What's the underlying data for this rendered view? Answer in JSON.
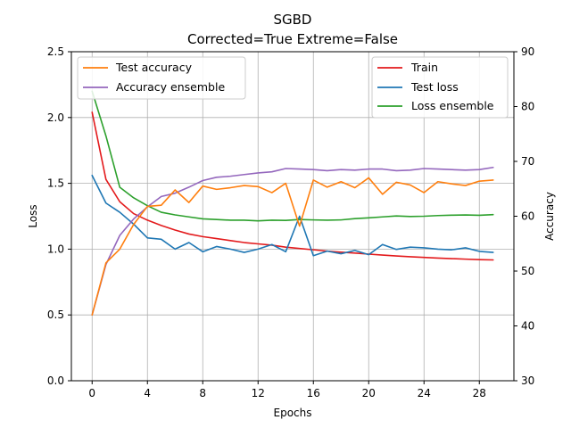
{
  "chart_data": {
    "type": "line",
    "title": "SGBD",
    "subtitle": "Corrected=True Extreme=False",
    "xlabel": "Epochs",
    "ylabel_left": "Loss",
    "ylabel_right": "Accuracy",
    "grid": true,
    "x": [
      0,
      1,
      2,
      3,
      4,
      5,
      6,
      7,
      8,
      9,
      10,
      11,
      12,
      13,
      14,
      15,
      16,
      17,
      18,
      19,
      20,
      21,
      22,
      23,
      24,
      25,
      26,
      27,
      28,
      29
    ],
    "xlim": [
      -1.5,
      30.5
    ],
    "xticks": [
      0,
      4,
      8,
      12,
      16,
      20,
      24,
      28
    ],
    "ylim_left": [
      0,
      2.5
    ],
    "yticks_left": [
      "0.0",
      "0.5",
      "1.0",
      "1.5",
      "2.0",
      "2.5"
    ],
    "ylim_right": [
      30,
      90
    ],
    "yticks_right": [
      "30",
      "40",
      "50",
      "60",
      "70",
      "80",
      "90"
    ],
    "legends": [
      {
        "placement": "upper-left",
        "entries": [
          "Test accuracy",
          "Accuracy ensemble"
        ]
      },
      {
        "placement": "upper-right",
        "entries": [
          "Train",
          "Test loss",
          "Loss ensemble"
        ]
      }
    ],
    "series": [
      {
        "name": "Train",
        "axis": "left",
        "color": "#e31a1c",
        "values": [
          2.04,
          1.53,
          1.36,
          1.27,
          1.22,
          1.18,
          1.145,
          1.115,
          1.095,
          1.08,
          1.065,
          1.05,
          1.04,
          1.03,
          1.015,
          1.005,
          0.995,
          0.985,
          0.977,
          0.97,
          0.962,
          0.955,
          0.948,
          0.942,
          0.937,
          0.932,
          0.928,
          0.924,
          0.92,
          0.918
        ]
      },
      {
        "name": "Test loss",
        "axis": "left",
        "color": "#1f77b4",
        "values": [
          1.56,
          1.35,
          1.28,
          1.19,
          1.085,
          1.075,
          1.0,
          1.05,
          0.98,
          1.02,
          1.0,
          0.975,
          1.0,
          1.035,
          0.98,
          1.25,
          0.95,
          0.985,
          0.965,
          0.99,
          0.958,
          1.035,
          0.998,
          1.015,
          1.01,
          1.0,
          0.995,
          1.01,
          0.983,
          0.975
        ]
      },
      {
        "name": "Loss ensemble",
        "axis": "left",
        "color": "#2ca02c",
        "values": [
          2.2,
          1.86,
          1.47,
          1.39,
          1.33,
          1.28,
          1.26,
          1.245,
          1.23,
          1.225,
          1.22,
          1.22,
          1.215,
          1.22,
          1.218,
          1.225,
          1.222,
          1.22,
          1.222,
          1.232,
          1.238,
          1.245,
          1.252,
          1.248,
          1.25,
          1.255,
          1.258,
          1.26,
          1.257,
          1.262
        ]
      },
      {
        "name": "Test accuracy",
        "axis": "right",
        "color": "#ff7f0e",
        "values": [
          42.0,
          51.5,
          54.0,
          58.5,
          61.8,
          62.0,
          64.8,
          62.5,
          65.5,
          64.9,
          65.2,
          65.6,
          65.4,
          64.3,
          66.0,
          58.2,
          66.6,
          65.3,
          66.3,
          65.2,
          67.0,
          64.0,
          66.2,
          65.7,
          64.3,
          66.3,
          65.9,
          65.6,
          66.4,
          66.6
        ]
      },
      {
        "name": "Accuracy ensemble",
        "axis": "right",
        "color": "#9467bd",
        "values": [
          42.0,
          51.2,
          56.5,
          59.5,
          61.7,
          63.6,
          64.2,
          65.3,
          66.5,
          67.1,
          67.3,
          67.6,
          67.9,
          68.1,
          68.7,
          68.6,
          68.5,
          68.3,
          68.5,
          68.4,
          68.6,
          68.6,
          68.3,
          68.4,
          68.7,
          68.6,
          68.5,
          68.4,
          68.5,
          68.9
        ]
      }
    ]
  }
}
